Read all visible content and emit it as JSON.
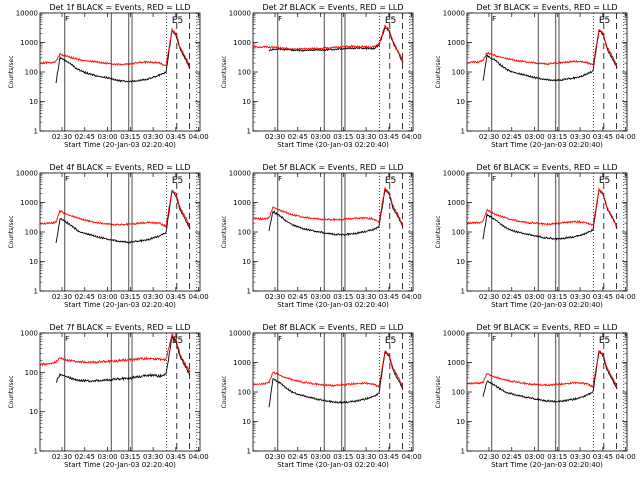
{
  "colors": {
    "events": "#000000",
    "lld": "#ff0000",
    "axis": "#000000",
    "background": "#ffffff"
  },
  "chart_data": [
    {
      "type": "line",
      "title": "Det 1f BLACK = Events, RED = LLD",
      "ylabel": "Counts/sec",
      "xlabel": "Start Time (20-Jan-03 02:20:40)",
      "x_ticks": [
        "02:30",
        "02:45",
        "03:00",
        "03:15",
        "03:30",
        "03:45",
        "04:00"
      ],
      "y_ticks": [
        "1",
        "10",
        "100",
        "1000",
        "10000"
      ],
      "x_range_min": [
        20,
        100
      ],
      "ylim": [
        1,
        10000
      ],
      "yscale": "log",
      "annotation": "E5",
      "series": [
        {
          "name": "Events",
          "color": "#000000",
          "x": [
            28,
            30,
            34,
            37,
            40,
            45,
            50,
            55,
            60,
            65,
            70,
            72,
            75,
            80,
            83,
            86,
            88,
            90,
            93,
            95
          ],
          "y": [
            45,
            300,
            220,
            150,
            110,
            85,
            70,
            60,
            50,
            48,
            52,
            55,
            60,
            80,
            100,
            2500,
            1800,
            600,
            250,
            130
          ]
        },
        {
          "name": "LLD",
          "color": "#ff0000",
          "x": [
            20,
            26,
            28,
            30,
            34,
            40,
            45,
            50,
            55,
            60,
            65,
            70,
            75,
            80,
            83,
            86,
            88,
            90,
            93,
            95
          ],
          "y": [
            200,
            210,
            230,
            400,
            330,
            260,
            230,
            210,
            190,
            180,
            190,
            210,
            220,
            200,
            160,
            2700,
            2000,
            700,
            300,
            150
          ]
        }
      ]
    },
    {
      "type": "line",
      "title": "Det 2f BLACK = Events, RED = LLD",
      "ylabel": "Counts/sec",
      "xlabel": "Start Time (20-Jan-03 02:20:40)",
      "x_ticks": [
        "02:30",
        "02:45",
        "03:00",
        "03:15",
        "03:30",
        "03:45",
        "04:00"
      ],
      "y_ticks": [
        "1",
        "10",
        "100",
        "1000",
        "10000"
      ],
      "x_range_min": [
        20,
        100
      ],
      "ylim": [
        1,
        10000
      ],
      "yscale": "log",
      "annotation": "E5",
      "series": [
        {
          "name": "Events",
          "color": "#000000",
          "x": [
            28,
            30,
            35,
            40,
            45,
            50,
            55,
            60,
            65,
            70,
            75,
            80,
            83,
            86,
            88,
            90,
            93,
            95
          ],
          "y": [
            520,
            600,
            580,
            560,
            540,
            550,
            560,
            580,
            620,
            650,
            640,
            620,
            800,
            3200,
            2500,
            1000,
            400,
            200
          ]
        },
        {
          "name": "LLD",
          "color": "#ff0000",
          "x": [
            20,
            26,
            30,
            35,
            40,
            45,
            50,
            55,
            60,
            65,
            70,
            75,
            80,
            83,
            86,
            88,
            90,
            93,
            95
          ],
          "y": [
            700,
            700,
            680,
            640,
            600,
            600,
            620,
            640,
            680,
            720,
            740,
            720,
            700,
            900,
            3600,
            2800,
            1100,
            450,
            230
          ]
        }
      ]
    },
    {
      "type": "line",
      "title": "Det 3f BLACK = Events, RED = LLD",
      "ylabel": "Counts/sec",
      "xlabel": "Start Time (20-Jan-03 02:20:40)",
      "x_ticks": [
        "02:30",
        "02:45",
        "03:00",
        "03:15",
        "03:30",
        "03:45",
        "04:00"
      ],
      "y_ticks": [
        "1",
        "10",
        "100",
        "1000",
        "10000"
      ],
      "x_range_min": [
        20,
        100
      ],
      "ylim": [
        1,
        10000
      ],
      "yscale": "log",
      "annotation": "E5",
      "series": [
        {
          "name": "Events",
          "color": "#000000",
          "x": [
            28,
            30,
            34,
            37,
            40,
            45,
            50,
            55,
            60,
            65,
            70,
            72,
            75,
            80,
            83,
            86,
            88,
            90,
            93,
            95
          ],
          "y": [
            50,
            350,
            250,
            170,
            120,
            90,
            75,
            62,
            55,
            52,
            58,
            60,
            65,
            85,
            110,
            2600,
            1900,
            620,
            260,
            140
          ]
        },
        {
          "name": "LLD",
          "color": "#ff0000",
          "x": [
            20,
            26,
            28,
            30,
            34,
            40,
            45,
            50,
            55,
            60,
            65,
            70,
            75,
            80,
            83,
            86,
            88,
            90,
            93,
            95
          ],
          "y": [
            210,
            220,
            240,
            450,
            360,
            280,
            240,
            220,
            200,
            190,
            200,
            220,
            230,
            210,
            170,
            2800,
            2100,
            720,
            310,
            155
          ]
        }
      ]
    },
    {
      "type": "line",
      "title": "Det 4f BLACK = Events, RED = LLD",
      "ylabel": "Counts/sec",
      "xlabel": "Start Time (20-Jan-03 02:20:40)",
      "x_ticks": [
        "02:30",
        "02:45",
        "03:00",
        "03:15",
        "03:30",
        "03:45",
        "04:00"
      ],
      "y_ticks": [
        "1",
        "10",
        "100",
        "1000",
        "10000"
      ],
      "x_range_min": [
        20,
        100
      ],
      "ylim": [
        1,
        10000
      ],
      "yscale": "log",
      "annotation": "E5",
      "series": [
        {
          "name": "Events",
          "color": "#000000",
          "x": [
            28,
            30,
            34,
            37,
            40,
            45,
            50,
            55,
            60,
            65,
            70,
            72,
            75,
            80,
            83,
            86,
            88,
            90,
            93,
            95
          ],
          "y": [
            40,
            280,
            200,
            140,
            100,
            80,
            65,
            55,
            48,
            45,
            50,
            52,
            58,
            75,
            95,
            2400,
            1700,
            580,
            240,
            125
          ]
        },
        {
          "name": "LLD",
          "color": "#ff0000",
          "x": [
            20,
            26,
            28,
            30,
            34,
            40,
            45,
            50,
            55,
            60,
            65,
            70,
            75,
            80,
            83,
            86,
            88,
            90,
            93,
            95
          ],
          "y": [
            190,
            200,
            220,
            520,
            380,
            280,
            230,
            200,
            185,
            175,
            185,
            200,
            210,
            195,
            155,
            2600,
            1950,
            680,
            290,
            145
          ]
        }
      ]
    },
    {
      "type": "line",
      "title": "Det 5f BLACK = Events, RED = LLD",
      "ylabel": "Counts/sec",
      "xlabel": "Start Time (20-Jan-03 02:20:40)",
      "x_ticks": [
        "02:30",
        "02:45",
        "03:00",
        "03:15",
        "03:30",
        "03:45",
        "04:00"
      ],
      "y_ticks": [
        "1",
        "10",
        "100",
        "1000",
        "10000"
      ],
      "x_range_min": [
        20,
        100
      ],
      "ylim": [
        1,
        10000
      ],
      "yscale": "log",
      "annotation": "E5",
      "series": [
        {
          "name": "Events",
          "color": "#000000",
          "x": [
            28,
            30,
            34,
            37,
            40,
            45,
            50,
            55,
            60,
            65,
            70,
            72,
            75,
            80,
            83,
            86,
            88,
            90,
            93,
            95
          ],
          "y": [
            110,
            500,
            330,
            230,
            170,
            130,
            110,
            95,
            85,
            80,
            88,
            92,
            100,
            120,
            150,
            2700,
            2000,
            650,
            280,
            150
          ]
        },
        {
          "name": "LLD",
          "color": "#ff0000",
          "x": [
            20,
            26,
            28,
            30,
            34,
            40,
            45,
            50,
            55,
            60,
            65,
            70,
            75,
            80,
            83,
            86,
            88,
            90,
            93,
            95
          ],
          "y": [
            280,
            280,
            300,
            700,
            520,
            380,
            320,
            290,
            270,
            260,
            270,
            290,
            300,
            280,
            220,
            3000,
            2200,
            760,
            330,
            170
          ]
        }
      ]
    },
    {
      "type": "line",
      "title": "Det 6f BLACK = Events, RED = LLD",
      "ylabel": "Counts/sec",
      "xlabel": "Start Time (20-Jan-03 02:20:40)",
      "x_ticks": [
        "02:30",
        "02:45",
        "03:00",
        "03:15",
        "03:30",
        "03:45",
        "04:00"
      ],
      "y_ticks": [
        "1",
        "10",
        "100",
        "1000",
        "10000"
      ],
      "x_range_min": [
        20,
        100
      ],
      "ylim": [
        1,
        10000
      ],
      "yscale": "log",
      "annotation": "E5",
      "series": [
        {
          "name": "Events",
          "color": "#000000",
          "x": [
            28,
            30,
            34,
            37,
            40,
            45,
            50,
            55,
            60,
            65,
            70,
            72,
            75,
            80,
            83,
            86,
            88,
            90,
            93,
            95
          ],
          "y": [
            60,
            380,
            270,
            180,
            130,
            100,
            85,
            72,
            62,
            58,
            64,
            66,
            72,
            92,
            120,
            2650,
            1950,
            630,
            270,
            140
          ]
        },
        {
          "name": "LLD",
          "color": "#ff0000",
          "x": [
            20,
            26,
            28,
            30,
            34,
            40,
            45,
            50,
            55,
            60,
            65,
            70,
            75,
            80,
            83,
            86,
            88,
            90,
            93,
            95
          ],
          "y": [
            200,
            210,
            230,
            560,
            400,
            290,
            240,
            210,
            195,
            185,
            195,
            215,
            225,
            205,
            165,
            2750,
            2050,
            700,
            300,
            150
          ]
        }
      ]
    },
    {
      "type": "line",
      "title": "Det 7f BLACK = Events, RED = LLD",
      "ylabel": "Counts/sec",
      "xlabel": "Start Time (20-Jan-03 02:20:40)",
      "x_ticks": [
        "02:30",
        "02:45",
        "03:00",
        "03:15",
        "03:30",
        "03:45",
        "04:00"
      ],
      "y_ticks": [
        "1",
        "10",
        "100",
        "1000"
      ],
      "x_range_min": [
        20,
        100
      ],
      "ylim": [
        1,
        1000
      ],
      "yscale": "log",
      "annotation": "E5",
      "series": [
        {
          "name": "Events",
          "color": "#000000",
          "x": [
            28,
            30,
            34,
            37,
            40,
            45,
            50,
            55,
            60,
            65,
            70,
            72,
            75,
            80,
            83,
            86,
            88,
            90,
            93,
            95
          ],
          "y": [
            55,
            90,
            75,
            65,
            62,
            60,
            62,
            65,
            68,
            72,
            78,
            82,
            85,
            80,
            90,
            800,
            600,
            250,
            130,
            90
          ]
        },
        {
          "name": "LLD",
          "color": "#ff0000",
          "x": [
            20,
            26,
            28,
            30,
            34,
            40,
            45,
            50,
            55,
            60,
            65,
            70,
            75,
            80,
            83,
            86,
            88,
            90,
            93,
            95
          ],
          "y": [
            160,
            170,
            180,
            230,
            200,
            185,
            180,
            185,
            190,
            200,
            210,
            220,
            225,
            215,
            210,
            900,
            700,
            290,
            150,
            100
          ]
        }
      ]
    },
    {
      "type": "line",
      "title": "Det 8f BLACK = Events, RED = LLD",
      "ylabel": "Counts/sec",
      "xlabel": "Start Time (20-Jan-03 02:20:40)",
      "x_ticks": [
        "02:30",
        "02:45",
        "03:00",
        "03:15",
        "03:30",
        "03:45",
        "04:00"
      ],
      "y_ticks": [
        "1",
        "10",
        "100",
        "1000",
        "10000"
      ],
      "x_range_min": [
        20,
        100
      ],
      "ylim": [
        1,
        10000
      ],
      "yscale": "log",
      "annotation": "E5",
      "series": [
        {
          "name": "Events",
          "color": "#000000",
          "x": [
            28,
            30,
            34,
            37,
            40,
            45,
            50,
            55,
            60,
            65,
            70,
            72,
            75,
            80,
            83,
            86,
            88,
            90,
            93,
            95
          ],
          "y": [
            30,
            280,
            190,
            130,
            95,
            75,
            62,
            52,
            46,
            44,
            48,
            50,
            55,
            70,
            90,
            2300,
            1650,
            560,
            235,
            120
          ]
        },
        {
          "name": "LLD",
          "color": "#ff0000",
          "x": [
            20,
            26,
            28,
            30,
            34,
            40,
            45,
            50,
            55,
            60,
            65,
            70,
            75,
            80,
            83,
            86,
            88,
            90,
            93,
            95
          ],
          "y": [
            180,
            190,
            210,
            480,
            350,
            260,
            215,
            190,
            175,
            165,
            175,
            190,
            200,
            185,
            150,
            2500,
            1850,
            650,
            280,
            140
          ]
        }
      ]
    },
    {
      "type": "line",
      "title": "Det 9f BLACK = Events, RED = LLD",
      "ylabel": "Counts/sec",
      "xlabel": "Start Time (20-Jan-03 02:20:40)",
      "x_ticks": [
        "02:30",
        "02:45",
        "03:00",
        "03:15",
        "03:30",
        "03:45",
        "04:00"
      ],
      "y_ticks": [
        "1",
        "10",
        "100",
        "1000",
        "10000"
      ],
      "x_range_min": [
        20,
        100
      ],
      "ylim": [
        1,
        10000
      ],
      "yscale": "log",
      "annotation": "E5",
      "series": [
        {
          "name": "Events",
          "color": "#000000",
          "x": [
            28,
            30,
            34,
            37,
            40,
            45,
            50,
            55,
            60,
            65,
            70,
            72,
            75,
            80,
            83,
            86,
            88,
            90,
            93,
            95
          ],
          "y": [
            70,
            230,
            170,
            120,
            95,
            78,
            66,
            56,
            50,
            47,
            52,
            55,
            60,
            78,
            100,
            2350,
            1700,
            570,
            240,
            125
          ]
        },
        {
          "name": "LLD",
          "color": "#ff0000",
          "x": [
            20,
            26,
            28,
            30,
            34,
            40,
            45,
            50,
            55,
            60,
            65,
            70,
            75,
            80,
            83,
            86,
            88,
            90,
            93,
            95
          ],
          "y": [
            190,
            200,
            215,
            420,
            320,
            250,
            215,
            190,
            180,
            170,
            180,
            195,
            205,
            190,
            155,
            2550,
            1900,
            660,
            285,
            145
          ]
        }
      ]
    }
  ]
}
